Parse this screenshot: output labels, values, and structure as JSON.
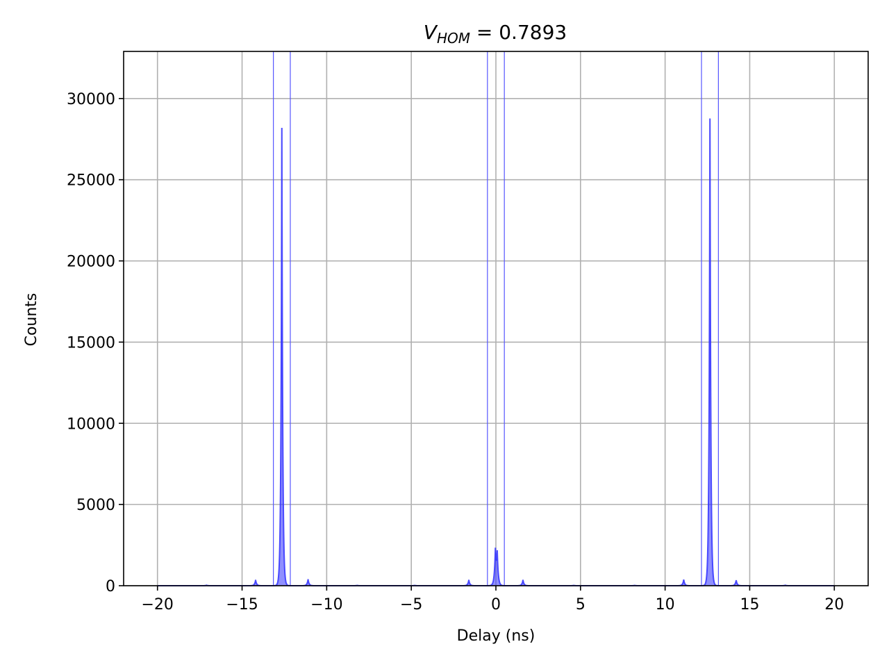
{
  "chart_data": {
    "type": "area",
    "title": {
      "symbol": "V",
      "subscript": "HOM",
      "rest": " = 0.7893"
    },
    "xlabel": "Delay (ns)",
    "ylabel": "Counts",
    "xlim": [
      -22,
      22
    ],
    "ylim": [
      0,
      32900
    ],
    "grid": true,
    "xticks": [
      -20,
      -15,
      -10,
      -5,
      0,
      5,
      10,
      15,
      20
    ],
    "xtick_labels": [
      "−20",
      "−15",
      "−10",
      "−5",
      "0",
      "5",
      "10",
      "15",
      "20"
    ],
    "yticks": [
      0,
      5000,
      10000,
      15000,
      20000,
      25000,
      30000
    ],
    "ytick_labels": [
      "0",
      "5000",
      "10000",
      "15000",
      "20000",
      "25000",
      "30000"
    ],
    "series_color": "#3333ff",
    "window_line_color": "#5555ff",
    "grid_color": "#b0b0b0",
    "window_lines": [
      -13.15,
      -12.15,
      -0.5,
      0.5,
      12.15,
      13.15
    ],
    "peaks": [
      {
        "center": -17.1,
        "height": 30
      },
      {
        "center": -14.2,
        "height": 360
      },
      {
        "center": -12.65,
        "height": 29300
      },
      {
        "center": -11.1,
        "height": 400
      },
      {
        "center": -8.2,
        "height": 20
      },
      {
        "center": -4.8,
        "height": 20
      },
      {
        "center": -1.6,
        "height": 360
      },
      {
        "center": -0.03,
        "height": 2100
      },
      {
        "center": 0.08,
        "height": 1850
      },
      {
        "center": 1.6,
        "height": 360
      },
      {
        "center": 4.6,
        "height": 20
      },
      {
        "center": 8.2,
        "height": 20
      },
      {
        "center": 11.1,
        "height": 380
      },
      {
        "center": 12.65,
        "height": 29900
      },
      {
        "center": 14.2,
        "height": 340
      },
      {
        "center": 17.1,
        "height": 30
      }
    ]
  }
}
